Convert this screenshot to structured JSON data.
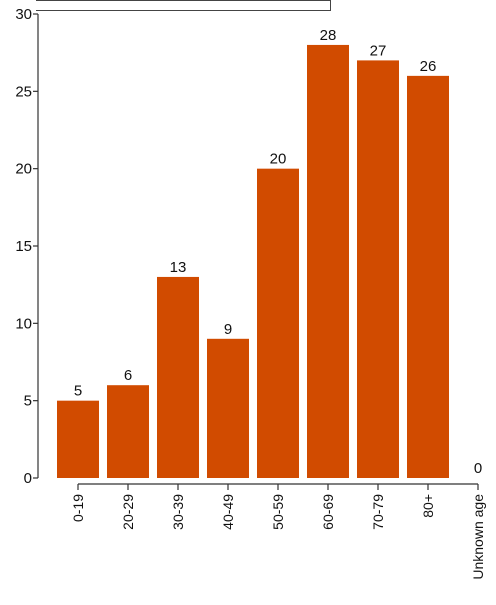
{
  "chart_data": {
    "type": "bar",
    "categories": [
      "0-19",
      "20-29",
      "30-39",
      "40-49",
      "50-59",
      "60-69",
      "70-79",
      "80+",
      "Unknown age"
    ],
    "values": [
      5,
      6,
      13,
      9,
      20,
      28,
      27,
      26,
      0
    ],
    "data_labels": [
      "5",
      "6",
      "13",
      "9",
      "20",
      "28",
      "27",
      "26",
      "0"
    ],
    "y_ticks": [
      0,
      5,
      10,
      15,
      20,
      25,
      30
    ],
    "y_tick_labels": [
      "0",
      "5",
      "10",
      "15",
      "20",
      "25",
      "30"
    ],
    "ylim": [
      0,
      30
    ],
    "grid": false,
    "legend": "none",
    "bar_color": "#d14b00",
    "title": "",
    "xlabel": "",
    "ylabel": ""
  }
}
